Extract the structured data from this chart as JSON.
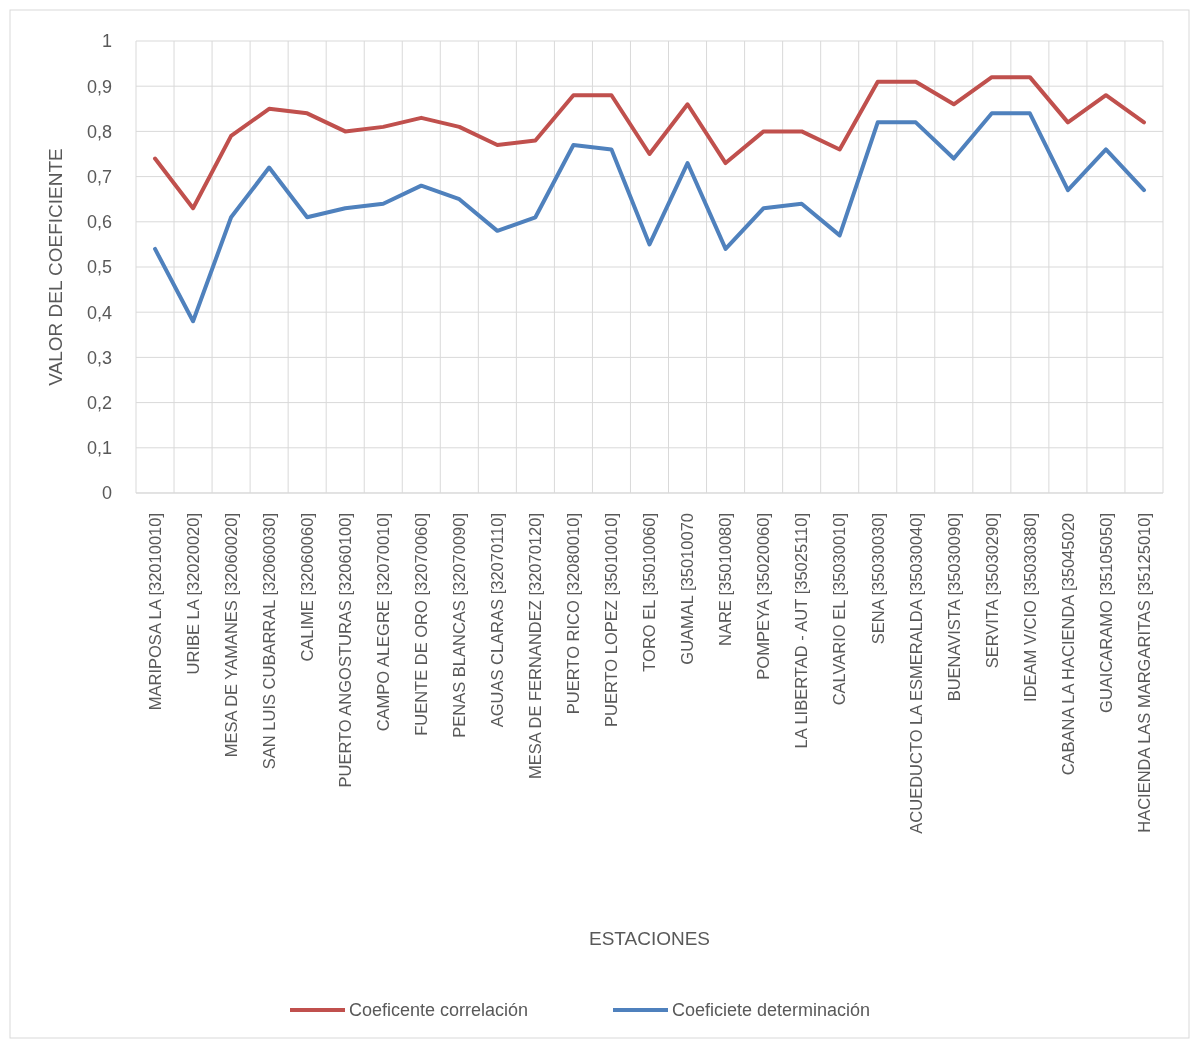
{
  "chart_data": {
    "type": "line",
    "xlabel": "ESTACIONES",
    "ylabel": "VALOR DEL COEFICIENTE",
    "categories": [
      "MARIPOSA LA [32010010]",
      "URIBE LA [32020020]",
      "MESA DE YAMANES [32060020]",
      "SAN LUIS CUBARRAL [32060030]",
      "CALIME [32060060]",
      "PUERTO ANGOSTURAS [32060100]",
      "CAMPO ALEGRE [32070010]",
      "FUENTE DE ORO [32070060]",
      "PENAS BLANCAS [32070090]",
      "AGUAS CLARAS [32070110]",
      "MESA DE FERNANDEZ [32070120]",
      "PUERTO RICO [32080010]",
      "PUERTO LOPEZ [35010010]",
      "TORO EL [35010060]",
      "GUAMAL [35010070",
      "NARE [35010080]",
      "POMPEYA [35020060]",
      "LA LIBERTAD - AUT [35025110]",
      "CALVARIO EL [35030010]",
      "SENA [35030030]",
      "ACUEDUCTO LA ESMERALDA [35030040]",
      "BUENAVISTA [35030090]",
      "SERVITA [35030290]",
      "IDEAM V/CIO [35030380]",
      "CABANA LA HACIENDA [35045020",
      "GUAICARAMO [35105050]",
      "HACIENDA LAS MARGARITAS [35125010]"
    ],
    "series": [
      {
        "name": "Coeficente correlación",
        "color": "#c0504d",
        "values": [
          0.74,
          0.63,
          0.79,
          0.85,
          0.84,
          0.8,
          0.81,
          0.83,
          0.81,
          0.77,
          0.78,
          0.88,
          0.88,
          0.75,
          0.86,
          0.73,
          0.8,
          0.8,
          0.76,
          0.91,
          0.91,
          0.86,
          0.92,
          0.92,
          0.82,
          0.88,
          0.82
        ]
      },
      {
        "name": "Coeficiete determinación",
        "color": "#4f81bd",
        "values": [
          0.54,
          0.38,
          0.61,
          0.72,
          0.61,
          0.63,
          0.64,
          0.68,
          0.65,
          0.58,
          0.61,
          0.77,
          0.76,
          0.55,
          0.73,
          0.54,
          0.63,
          0.64,
          0.57,
          0.82,
          0.82,
          0.74,
          0.84,
          0.84,
          0.67,
          0.76,
          0.67
        ]
      }
    ],
    "ylim": [
      0,
      1
    ],
    "yticks": [
      0,
      {
        "value": 0.1,
        "label": "0,1"
      },
      {
        "value": 0.2,
        "label": "0,2"
      },
      {
        "value": 0.3,
        "label": "0,3"
      },
      {
        "value": 0.4,
        "label": "0,4"
      },
      {
        "value": 0.5,
        "label": "0,5"
      },
      {
        "value": 0.6,
        "label": "0,6"
      },
      {
        "value": 0.7,
        "label": "0,7"
      },
      {
        "value": 0.8,
        "label": "0,8"
      },
      {
        "value": 0.9,
        "label": "0,9"
      },
      1
    ],
    "grid": true,
    "legend": "bottom",
    "marker": "none",
    "line_style": "solid"
  }
}
